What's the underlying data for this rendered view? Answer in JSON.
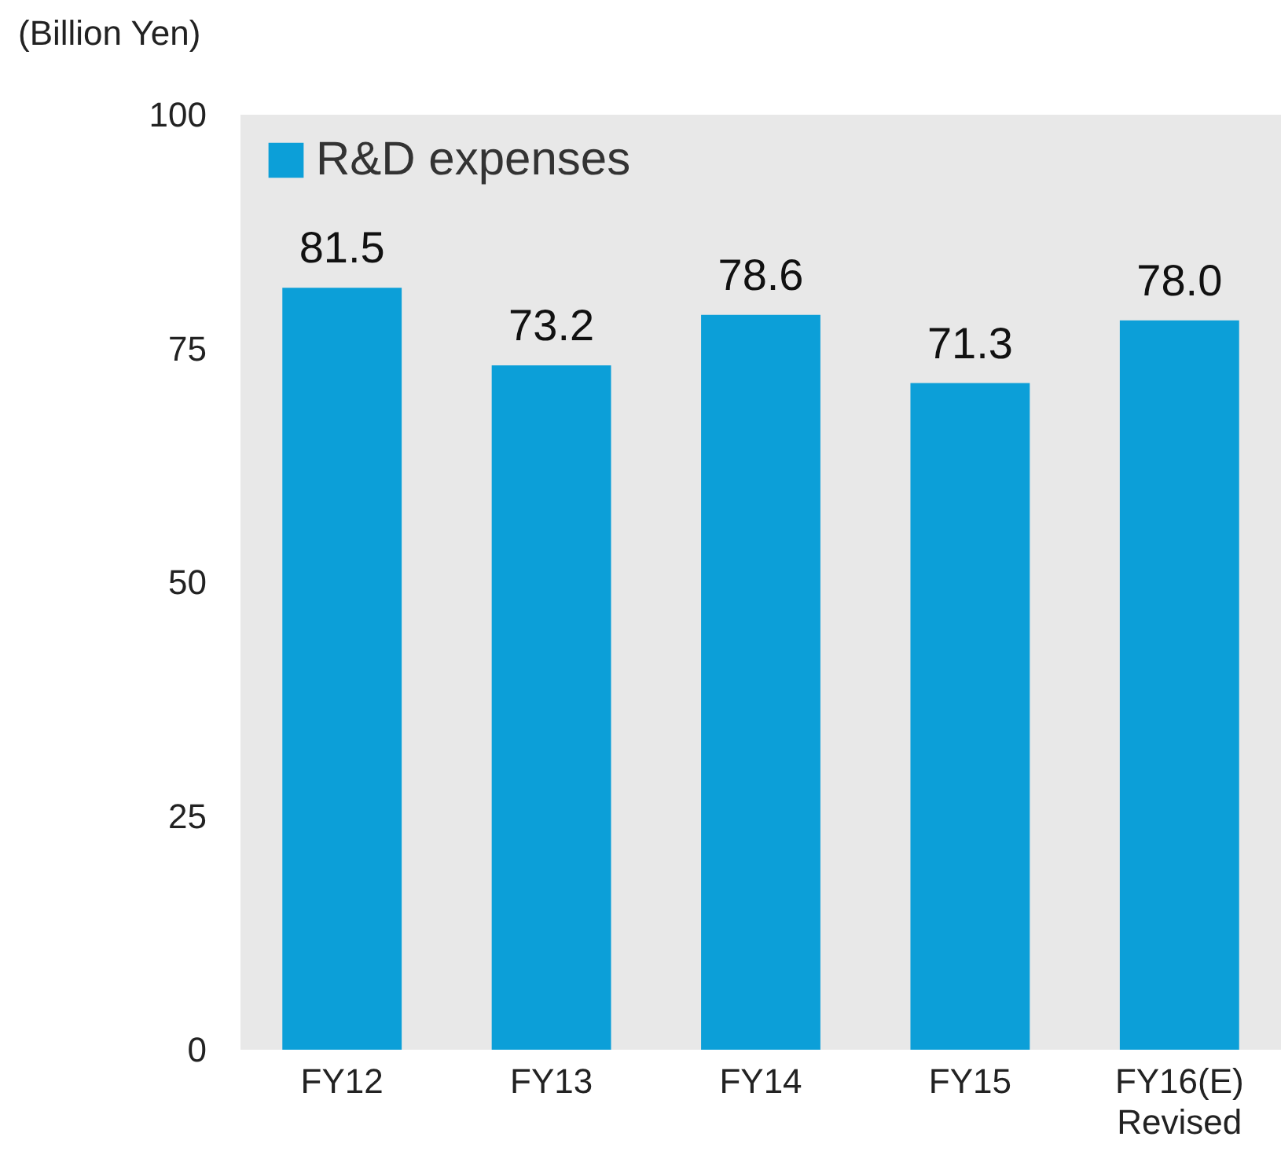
{
  "chart_data": {
    "type": "bar",
    "ylabel": "(Billion Yen)",
    "categories": [
      "FY12",
      "FY13",
      "FY14",
      "FY15",
      "FY16(E)\nRevised"
    ],
    "series": [
      {
        "name": "R&D expenses",
        "color": "#0c9fd8",
        "values": [
          81.5,
          73.2,
          78.6,
          71.3,
          78.0
        ],
        "value_labels": [
          "81.5",
          "73.2",
          "78.6",
          "71.3",
          "78.0"
        ]
      }
    ],
    "ylim": [
      0,
      100
    ],
    "yticks": [
      0,
      25,
      50,
      75,
      100
    ],
    "grid": false,
    "legend": "top left"
  }
}
